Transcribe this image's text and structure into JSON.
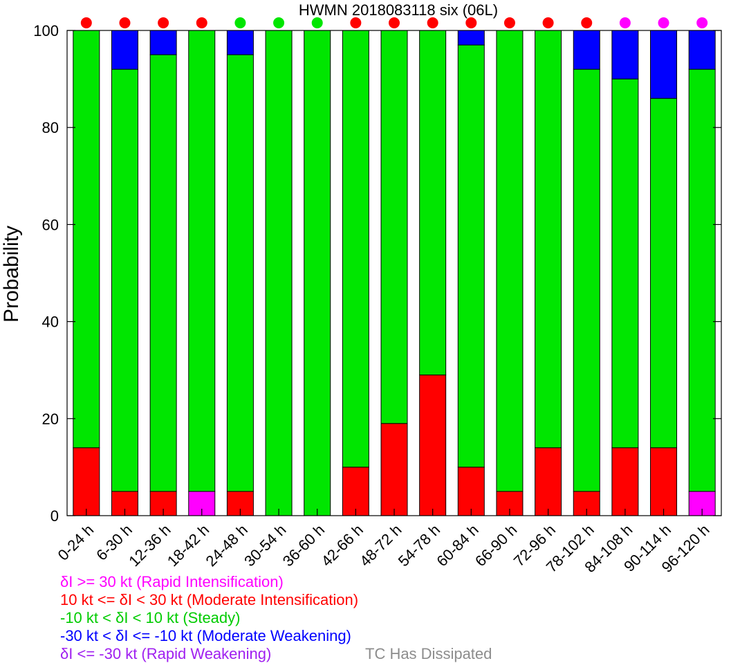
{
  "chart_data": {
    "type": "bar",
    "stacked": true,
    "title": "HWMN 2018083118 six (06L)",
    "xlabel": "",
    "ylabel": "Probability",
    "ylim": [
      0,
      100
    ],
    "yticks": [
      0,
      20,
      40,
      60,
      80,
      100
    ],
    "grid": false,
    "categories": [
      "0-24 h",
      "6-30 h",
      "12-36 h",
      "18-42 h",
      "24-48 h",
      "30-54 h",
      "36-60 h",
      "42-66 h",
      "48-72 h",
      "54-78 h",
      "60-84 h",
      "66-90 h",
      "72-96 h",
      "78-102 h",
      "84-108 h",
      "90-114 h",
      "96-120 h"
    ],
    "series": [
      {
        "key": "ri",
        "color": "#ff00ff",
        "values": [
          0,
          0,
          0,
          5,
          0,
          0,
          0,
          0,
          0,
          0,
          0,
          0,
          0,
          0,
          0,
          0,
          5
        ]
      },
      {
        "key": "mi",
        "color": "#ff0000",
        "values": [
          14,
          5,
          5,
          0,
          5,
          0,
          0,
          10,
          19,
          29,
          10,
          5,
          14,
          5,
          14,
          14,
          0
        ]
      },
      {
        "key": "st",
        "color": "#00e600",
        "values": [
          86,
          87,
          90,
          95,
          90,
          100,
          100,
          90,
          81,
          71,
          87,
          95,
          86,
          87,
          76,
          72,
          87
        ]
      },
      {
        "key": "mw",
        "color": "#0000ff",
        "values": [
          0,
          8,
          5,
          0,
          5,
          0,
          0,
          0,
          0,
          0,
          3,
          0,
          0,
          8,
          10,
          14,
          8
        ]
      },
      {
        "key": "rw",
        "color": "#a020f0",
        "values": [
          0,
          0,
          0,
          0,
          0,
          0,
          0,
          0,
          0,
          0,
          0,
          0,
          0,
          0,
          0,
          0,
          0
        ]
      }
    ],
    "marker_colors": [
      "#ff0000",
      "#ff0000",
      "#ff0000",
      "#ff0000",
      "#00e600",
      "#00e600",
      "#00e600",
      "#ff0000",
      "#ff0000",
      "#ff0000",
      "#ff0000",
      "#ff0000",
      "#ff0000",
      "#ff0000",
      "#ff00ff",
      "#ff00ff",
      "#ff00ff"
    ]
  },
  "legend": [
    {
      "text": "δI >= 30 kt (Rapid Intensification)",
      "color": "#ff00ff"
    },
    {
      "text": "10 kt <= δI < 30 kt (Moderate Intensification)",
      "color": "#ff0000"
    },
    {
      "text": "-10 kt < δI < 10 kt (Steady)",
      "color": "#00cc00"
    },
    {
      "text": "-30 kt < δI <= -10 kt (Moderate Weakening)",
      "color": "#0000ff"
    },
    {
      "text": "δI <= -30 kt (Rapid Weakening)",
      "color": "#a020f0"
    }
  ],
  "dissipated_note": "TC Has Dissipated"
}
